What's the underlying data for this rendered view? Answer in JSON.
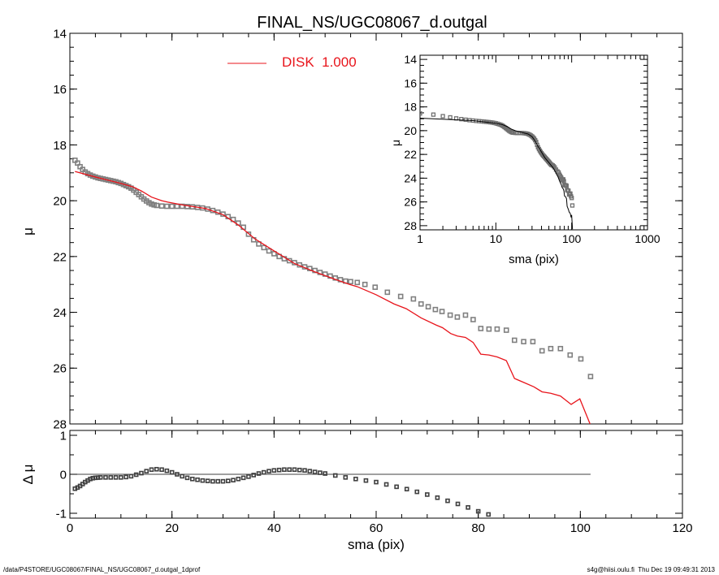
{
  "chart_data": [
    {
      "type": "scatter",
      "panel": "main",
      "title": "FINAL_NS/UGC08067_d.outgal",
      "xlabel": "",
      "ylabel": "μ",
      "xlim": [
        0,
        120
      ],
      "ylim": [
        28,
        14
      ],
      "xticks": [
        0,
        20,
        40,
        60,
        80,
        100,
        120
      ],
      "yticks": [
        14,
        16,
        18,
        20,
        22,
        24,
        26,
        28
      ],
      "legend": {
        "label": "DISK  1.000",
        "color": "#e8141b",
        "placement": "top-center"
      },
      "series": [
        {
          "name": "observed",
          "style": "square-markers",
          "color": "#808080",
          "points": [
            [
              1,
              18.55
            ],
            [
              1.5,
              18.65
            ],
            [
              2,
              18.78
            ],
            [
              2.5,
              18.88
            ],
            [
              3,
              18.97
            ],
            [
              3.5,
              19.03
            ],
            [
              4,
              19.08
            ],
            [
              4.5,
              19.12
            ],
            [
              5,
              19.15
            ],
            [
              5.5,
              19.18
            ],
            [
              6,
              19.2
            ],
            [
              6.5,
              19.22
            ],
            [
              7,
              19.24
            ],
            [
              7.5,
              19.26
            ],
            [
              8,
              19.28
            ],
            [
              8.5,
              19.3
            ],
            [
              9,
              19.32
            ],
            [
              9.5,
              19.35
            ],
            [
              10,
              19.38
            ],
            [
              10.5,
              19.42
            ],
            [
              11,
              19.46
            ],
            [
              11.5,
              19.5
            ],
            [
              12,
              19.55
            ],
            [
              12.5,
              19.62
            ],
            [
              13,
              19.7
            ],
            [
              13.5,
              19.78
            ],
            [
              14,
              19.86
            ],
            [
              14.5,
              19.94
            ],
            [
              15,
              20.01
            ],
            [
              15.5,
              20.07
            ],
            [
              16,
              20.12
            ],
            [
              16.5,
              20.15
            ],
            [
              17,
              20.17
            ],
            [
              18,
              20.19
            ],
            [
              19,
              20.2
            ],
            [
              20,
              20.2
            ],
            [
              21,
              20.2
            ],
            [
              22,
              20.2
            ],
            [
              23,
              20.21
            ],
            [
              24,
              20.22
            ],
            [
              25,
              20.24
            ],
            [
              26,
              20.26
            ],
            [
              27,
              20.3
            ],
            [
              28,
              20.35
            ],
            [
              29,
              20.41
            ],
            [
              30,
              20.48
            ],
            [
              31,
              20.57
            ],
            [
              32,
              20.67
            ],
            [
              33,
              20.8
            ],
            [
              34,
              20.95
            ],
            [
              35,
              21.2
            ],
            [
              36,
              21.4
            ],
            [
              37,
              21.55
            ],
            [
              38,
              21.68
            ],
            [
              39,
              21.8
            ],
            [
              40,
              21.9
            ],
            [
              41,
              22.0
            ],
            [
              42,
              22.08
            ],
            [
              43,
              22.15
            ],
            [
              44,
              22.22
            ],
            [
              45,
              22.3
            ],
            [
              46,
              22.37
            ],
            [
              47,
              22.43
            ],
            [
              48,
              22.5
            ],
            [
              49,
              22.57
            ],
            [
              50,
              22.63
            ],
            [
              51,
              22.7
            ],
            [
              52,
              22.77
            ],
            [
              53,
              22.83
            ],
            [
              54,
              22.88
            ],
            [
              55,
              22.9
            ],
            [
              56.3,
              22.93
            ],
            [
              57.8,
              23.0
            ],
            [
              59.8,
              23.1
            ],
            [
              62.2,
              23.28
            ],
            [
              64.8,
              23.43
            ],
            [
              67.3,
              23.52
            ],
            [
              68.8,
              23.7
            ],
            [
              70.2,
              23.8
            ],
            [
              71.6,
              23.9
            ],
            [
              72.9,
              23.97
            ],
            [
              74.5,
              24.1
            ],
            [
              75.9,
              24.17
            ],
            [
              77.5,
              24.1
            ],
            [
              79,
              24.26
            ],
            [
              80.5,
              24.58
            ],
            [
              82.1,
              24.6
            ],
            [
              83.7,
              24.6
            ],
            [
              85.5,
              24.64
            ],
            [
              87.1,
              25.0
            ],
            [
              88.9,
              25.05
            ],
            [
              90.7,
              25.05
            ],
            [
              92.5,
              25.38
            ],
            [
              94.2,
              25.3
            ],
            [
              96.1,
              25.3
            ],
            [
              98,
              25.53
            ],
            [
              100.1,
              25.67
            ],
            [
              102,
              26.3
            ]
          ]
        },
        {
          "name": "DISK  1.000",
          "style": "line",
          "color": "#e8141b",
          "points": [
            [
              1,
              18.95
            ],
            [
              5,
              19.15
            ],
            [
              10,
              19.38
            ],
            [
              12.3,
              19.5
            ],
            [
              14,
              19.65
            ],
            [
              16,
              19.87
            ],
            [
              18,
              20.0
            ],
            [
              19.2,
              20.05
            ],
            [
              22,
              20.15
            ],
            [
              26.6,
              20.28
            ],
            [
              30,
              20.5
            ],
            [
              33,
              20.87
            ],
            [
              36.2,
              21.36
            ],
            [
              40,
              21.8
            ],
            [
              44,
              22.25
            ],
            [
              48,
              22.55
            ],
            [
              52,
              22.82
            ],
            [
              54.8,
              23.0
            ],
            [
              56.3,
              23.08
            ],
            [
              60,
              23.37
            ],
            [
              63.5,
              23.7
            ],
            [
              65.9,
              23.87
            ],
            [
              68.8,
              24.2
            ],
            [
              71.8,
              24.46
            ],
            [
              73,
              24.55
            ],
            [
              74.6,
              24.76
            ],
            [
              75.9,
              24.85
            ],
            [
              77.5,
              24.9
            ],
            [
              79,
              25.08
            ],
            [
              80.5,
              25.5
            ],
            [
              82.1,
              25.53
            ],
            [
              83.7,
              25.6
            ],
            [
              85.5,
              25.73
            ],
            [
              87.1,
              26.37
            ],
            [
              89,
              26.52
            ],
            [
              90.9,
              26.67
            ],
            [
              92.5,
              26.85
            ],
            [
              94.2,
              26.9
            ],
            [
              96.1,
              27.0
            ],
            [
              98.2,
              27.3
            ],
            [
              99.9,
              27.1
            ],
            [
              101.9,
              28.0
            ],
            [
              102.5,
              28.3
            ]
          ]
        }
      ]
    },
    {
      "type": "scatter",
      "panel": "residual",
      "xlabel": "sma (pix)",
      "ylabel": "Δ μ",
      "xlim": [
        0,
        120
      ],
      "ylim": [
        -1.125,
        1.125
      ],
      "xticks": [
        0,
        20,
        40,
        60,
        80,
        100,
        120
      ],
      "yticks": [
        -1,
        0,
        1
      ],
      "zero_line_xrange": [
        0,
        102
      ],
      "series": [
        {
          "name": "residual",
          "style": "square-markers",
          "color": "#404040",
          "points": [
            [
              1,
              -0.37
            ],
            [
              1.5,
              -0.34
            ],
            [
              2,
              -0.3
            ],
            [
              2.5,
              -0.25
            ],
            [
              3,
              -0.2
            ],
            [
              3.5,
              -0.16
            ],
            [
              4,
              -0.12
            ],
            [
              4.5,
              -0.1
            ],
            [
              5,
              -0.09
            ],
            [
              5.5,
              -0.085
            ],
            [
              6,
              -0.08
            ],
            [
              7,
              -0.08
            ],
            [
              8,
              -0.08
            ],
            [
              9,
              -0.08
            ],
            [
              10,
              -0.08
            ],
            [
              11,
              -0.07
            ],
            [
              12,
              -0.05
            ],
            [
              13,
              -0.01
            ],
            [
              14,
              0.03
            ],
            [
              15,
              0.08
            ],
            [
              16,
              0.12
            ],
            [
              17,
              0.13
            ],
            [
              18,
              0.12
            ],
            [
              19,
              0.09
            ],
            [
              20,
              0.05
            ],
            [
              21,
              0.0
            ],
            [
              22,
              -0.05
            ],
            [
              23,
              -0.09
            ],
            [
              24,
              -0.12
            ],
            [
              25,
              -0.14
            ],
            [
              26,
              -0.16
            ],
            [
              27,
              -0.17
            ],
            [
              28,
              -0.18
            ],
            [
              29,
              -0.18
            ],
            [
              30,
              -0.18
            ],
            [
              31,
              -0.17
            ],
            [
              32,
              -0.15
            ],
            [
              33,
              -0.12
            ],
            [
              34,
              -0.09
            ],
            [
              35,
              -0.06
            ],
            [
              36,
              -0.02
            ],
            [
              37,
              0.02
            ],
            [
              38,
              0.05
            ],
            [
              39,
              0.08
            ],
            [
              40,
              0.1
            ],
            [
              41,
              0.11
            ],
            [
              42,
              0.12
            ],
            [
              43,
              0.12
            ],
            [
              44,
              0.12
            ],
            [
              45,
              0.11
            ],
            [
              46,
              0.1
            ],
            [
              47,
              0.08
            ],
            [
              48,
              0.06
            ],
            [
              49,
              0.04
            ],
            [
              50,
              0.02
            ],
            [
              52,
              -0.03
            ],
            [
              54,
              -0.08
            ],
            [
              56,
              -0.12
            ],
            [
              58,
              -0.16
            ],
            [
              60,
              -0.2
            ],
            [
              62,
              -0.26
            ],
            [
              64,
              -0.32
            ],
            [
              66,
              -0.38
            ],
            [
              68,
              -0.45
            ],
            [
              70,
              -0.52
            ],
            [
              72,
              -0.6
            ],
            [
              74,
              -0.68
            ],
            [
              76,
              -0.76
            ],
            [
              78,
              -0.85
            ],
            [
              80,
              -0.95
            ],
            [
              82,
              -1.03
            ]
          ]
        }
      ]
    },
    {
      "type": "scatter",
      "panel": "inset",
      "xlabel": "sma (pix)",
      "ylabel": "μ",
      "xscale": "log",
      "xlim": [
        1,
        1000
      ],
      "ylim": [
        28.35,
        13.65
      ],
      "xticks": [
        1,
        10,
        100,
        1000
      ],
      "xtick_labels": [
        "1",
        "10",
        "100",
        "1000"
      ],
      "yticks": [
        14,
        16,
        18,
        20,
        22,
        24,
        26,
        28
      ],
      "series_note": "same observed points (squares) and model (black line) as main panel"
    }
  ],
  "footer": {
    "left": "/data/P4STORE/UGC08067/FINAL_NS/UGC08067_d.outgal_1dprof",
    "right": "s4g@hiisi.oulu.fi  Thu Dec 19 09:49:31 2013"
  }
}
